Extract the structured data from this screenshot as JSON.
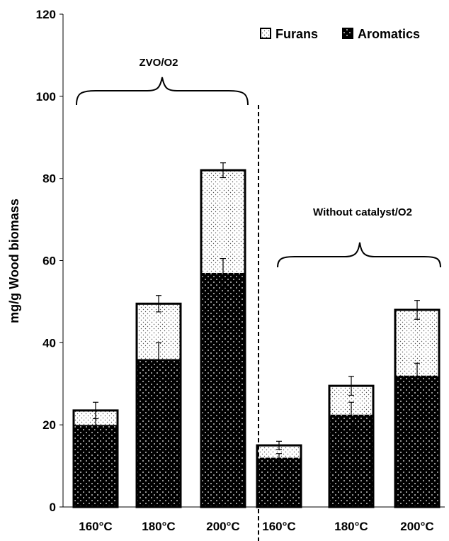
{
  "chart_data": {
    "type": "bar",
    "stacked": true,
    "ylabel": "mg/g Wood biomass",
    "ylim": [
      0,
      120
    ],
    "yticks": [
      0,
      20,
      40,
      60,
      80,
      100,
      120
    ],
    "categories": [
      "160°C",
      "180°C",
      "200°C",
      "160°C",
      "180°C",
      "200°C"
    ],
    "groups": [
      {
        "label": "ZVO/O2",
        "categories": [
          0,
          1,
          2
        ]
      },
      {
        "label": "Without catalyst/O2",
        "categories": [
          3,
          4,
          5
        ]
      }
    ],
    "series": [
      {
        "name": "Aromatics",
        "values": [
          20,
          36,
          57,
          12,
          22.5,
          32
        ],
        "error": [
          3.5,
          4,
          3.5,
          1,
          3,
          3
        ],
        "pattern": "dark-dots",
        "color": "#000000"
      },
      {
        "name": "Furans",
        "values": [
          3.5,
          13.5,
          25,
          3,
          7,
          16
        ],
        "error": [
          2,
          2,
          1.8,
          1,
          2.3,
          2.3
        ],
        "pattern": "light-dots",
        "color": "#ffffff"
      }
    ],
    "legend": {
      "position": "top-right"
    },
    "grid": false,
    "separator": "dashed vertical line between groups"
  }
}
